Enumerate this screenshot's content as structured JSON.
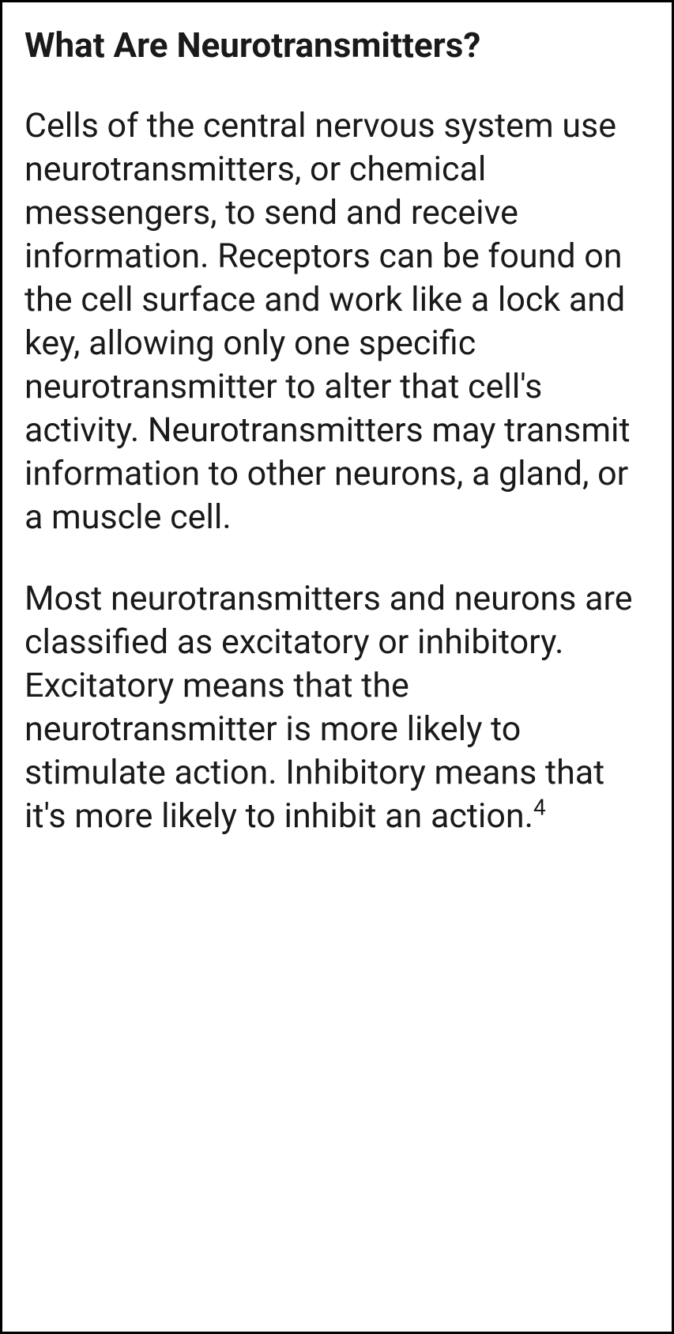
{
  "article": {
    "heading": "What Are Neurotransmitters?",
    "paragraphs": [
      {
        "text": "Cells of the central nervous system use neurotransmitters, or chemical messengers, to send and receive information. Receptors can be found on the cell surface and work like a lock and key, allowing only one specific neurotransmitter to alter that cell's activity. Neurotransmitters may transmit information to other neurons, a gland, or a muscle cell.",
        "citation": null
      },
      {
        "text": "Most neurotransmitters and neurons are classified as excitatory or inhibitory. Excitatory means that the neurotransmitter is more likely to stimulate action. Inhibitory means that it's more likely to inhibit an action.",
        "citation": "4"
      }
    ]
  },
  "styles": {
    "border_color": "#000000",
    "border_width": 3,
    "background_color": "#ffffff",
    "text_color": "#1a1a1a",
    "heading_fontsize": 44,
    "heading_fontweight": 700,
    "body_fontsize": 43,
    "body_fontweight": 400,
    "body_lineheight": 1.28,
    "citation_fontsize": 28,
    "padding": 28,
    "paragraph_spacing": 48
  }
}
